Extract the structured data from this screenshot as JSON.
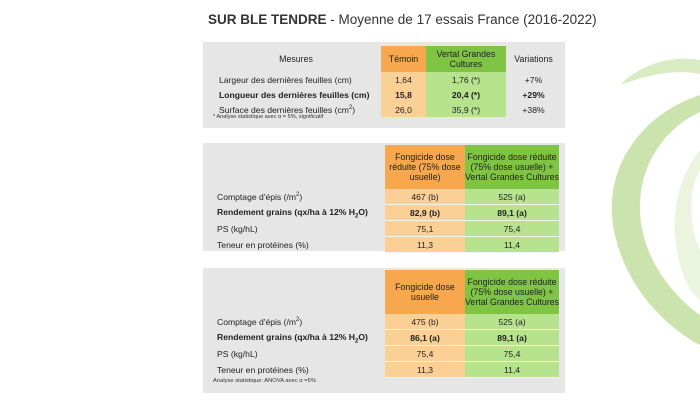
{
  "title": {
    "bold": "SUR BLE TENDRE",
    "rest": " - Moyenne de 17 essais France (2016-2022)"
  },
  "table1": {
    "headers": [
      "Mesures",
      "Témoin",
      "Vertal Grandes Cultures",
      "Variations"
    ],
    "rows": [
      {
        "label": "Largeur des dernières feuilles (cm)",
        "temoin": "1,64",
        "vertal": "1,76 (*)",
        "variation": "+7%"
      },
      {
        "label": "Longueur des dernières feuilles (cm)",
        "temoin": "15,8",
        "vertal": "20,4 (*)",
        "variation": "+29%"
      },
      {
        "label": "Surface des dernières feuilles (cm",
        "sup": "2",
        "label_end": ")",
        "temoin": "26,0",
        "vertal": "35,9 (*)",
        "variation": "+38%"
      }
    ],
    "note": "* Analyse statistique avec α = 5%, significatif"
  },
  "table2": {
    "headers": [
      "Fongicide dose réduite (75% dose usuelle)",
      "Fongicide dose réduite (75% dose usuelle) + Vertal Grandes Cultures"
    ],
    "rows": [
      {
        "label": "Comptage d'épis (/m",
        "sup": "2",
        "label_end": ")",
        "a": "467 (b)",
        "b": "525 (a)"
      },
      {
        "label": "Rendement grains (qx/ha à 12% H",
        "sub": "2",
        "label_end": "O)",
        "a": "82,9 (b)",
        "b": "89,1 (a)"
      },
      {
        "label": "PS (kg/hL)",
        "a": "75,1",
        "b": "75,4"
      },
      {
        "label": "Teneur en protéines (%)",
        "a": "11,3",
        "b": "11,4"
      }
    ]
  },
  "table3": {
    "headers": [
      "Fongicide dose usuelle",
      "Fongicide dose réduite (75% dose usuelle) + Vertal Grandes Cultures"
    ],
    "rows": [
      {
        "label": "Comptage d'épis (/m",
        "sup": "2",
        "label_end": ")",
        "a": "475 (b)",
        "b": "525 (a)"
      },
      {
        "label": "Rendement grains (qx/ha à 12% H",
        "sub": "2",
        "label_end": "O)",
        "a": "86,1 (a)",
        "b": "89,1 (a)"
      },
      {
        "label": "PS (kg/hL)",
        "a": "75,4",
        "b": "75,4"
      },
      {
        "label": "Teneur en protéines (%)",
        "a": "11,3",
        "b": "11,4"
      }
    ],
    "note": "Analyse statistique: ANOVA avec α =5%"
  },
  "colors": {
    "orange_header": "#f7a74e",
    "orange_cell": "#fbd096",
    "green_header": "#7fc443",
    "green_cell": "#b7e28e",
    "panel_bg": "#e6e6e6",
    "swoosh": "#c5e0a4"
  },
  "decor": {
    "icon": "leaf-swoosh-decoration"
  }
}
